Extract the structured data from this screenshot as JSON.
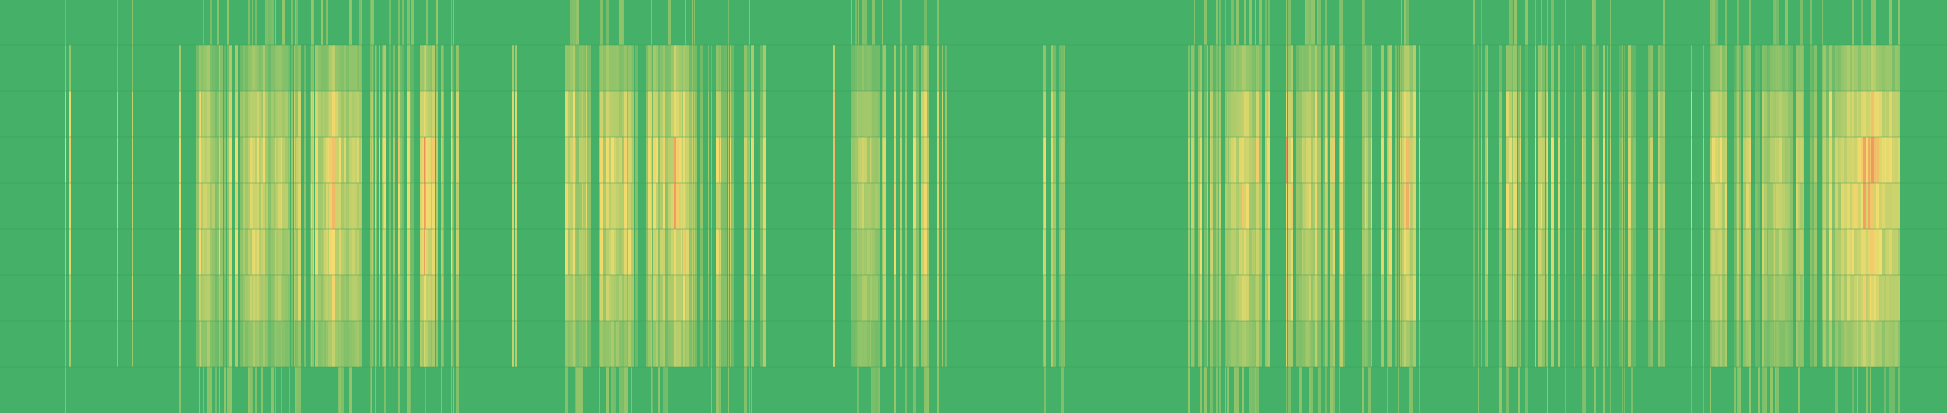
{
  "chart_data": {
    "type": "heatmap",
    "title": "",
    "xlabel": "",
    "ylabel": "",
    "rows": 9,
    "columns": 1947,
    "value_range": [
      0,
      1
    ],
    "grid": false,
    "legend": "none",
    "color_scale": {
      "low": "#45b067",
      "mid": "#f2dd6e",
      "high": "#f08a5d"
    },
    "row_intensity": [
      0.0,
      0.55,
      0.85,
      1.0,
      0.95,
      0.9,
      0.8,
      0.6,
      0.15
    ],
    "hot_bands": [
      {
        "from": 195,
        "to": 215,
        "peak": 0.7
      },
      {
        "from": 240,
        "to": 268,
        "peak": 0.75
      },
      {
        "from": 268,
        "to": 290,
        "peak": 0.65
      },
      {
        "from": 320,
        "to": 345,
        "peak": 0.85
      },
      {
        "from": 345,
        "to": 362,
        "peak": 0.7
      },
      {
        "from": 418,
        "to": 432,
        "peak": 1.0
      },
      {
        "from": 575,
        "to": 590,
        "peak": 0.55
      },
      {
        "from": 600,
        "to": 630,
        "peak": 0.7
      },
      {
        "from": 665,
        "to": 690,
        "peak": 0.75
      },
      {
        "from": 850,
        "to": 880,
        "peak": 0.6
      },
      {
        "from": 1225,
        "to": 1260,
        "peak": 0.75
      },
      {
        "from": 1295,
        "to": 1320,
        "peak": 0.65
      },
      {
        "from": 1400,
        "to": 1412,
        "peak": 0.8
      },
      {
        "from": 1710,
        "to": 1725,
        "peak": 0.75
      },
      {
        "from": 1765,
        "to": 1790,
        "peak": 0.6
      },
      {
        "from": 1835,
        "to": 1900,
        "peak": 0.95
      }
    ],
    "active_spans": [
      {
        "from": 195,
        "to": 460,
        "density": 0.55
      },
      {
        "from": 565,
        "to": 765,
        "density": 0.5
      },
      {
        "from": 840,
        "to": 960,
        "density": 0.35
      },
      {
        "from": 1040,
        "to": 1065,
        "density": 0.5
      },
      {
        "from": 1190,
        "to": 1420,
        "density": 0.55
      },
      {
        "from": 1470,
        "to": 1665,
        "density": 0.45
      },
      {
        "from": 1700,
        "to": 1900,
        "density": 0.6
      }
    ],
    "quiet_columns": [
      [
        1270,
        1282
      ],
      [
        1345,
        1362
      ],
      [
        460,
        495
      ],
      [
        960,
        1010
      ],
      [
        1070,
        1185
      ],
      [
        1420,
        1470
      ]
    ],
    "seed": 7
  }
}
